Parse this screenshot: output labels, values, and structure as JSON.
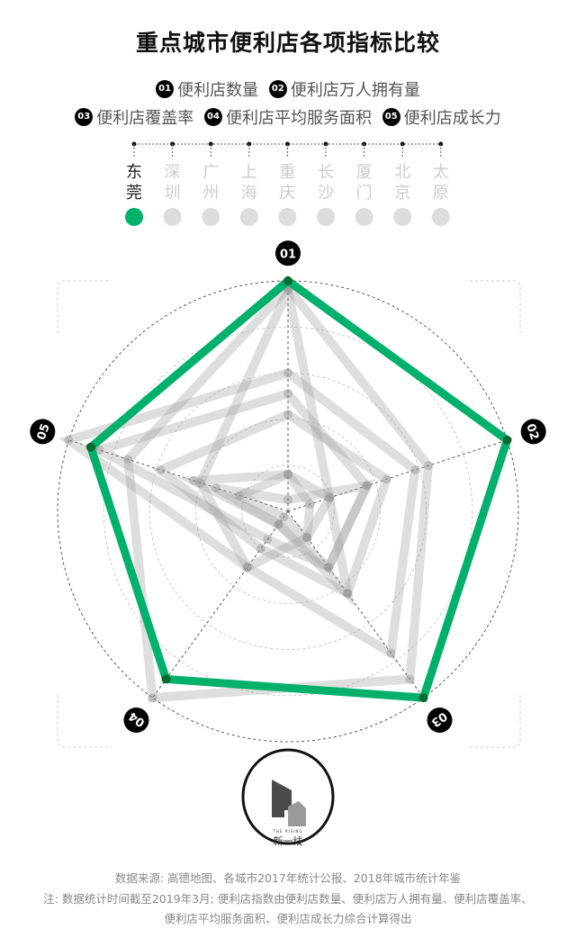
{
  "title": "重点城市便利店各项指标比较",
  "legend": [
    {
      "num": "01",
      "label": "便利店数量"
    },
    {
      "num": "02",
      "label": "便利店万人拥有量"
    },
    {
      "num": "03",
      "label": "便利店覆盖率"
    },
    {
      "num": "04",
      "label": "便利店平均服务面积"
    },
    {
      "num": "05",
      "label": "便利店成长力"
    }
  ],
  "cities": [
    {
      "name1": "东",
      "name2": "莞",
      "selected": true
    },
    {
      "name1": "深",
      "name2": "圳",
      "selected": false
    },
    {
      "name1": "广",
      "name2": "州",
      "selected": false
    },
    {
      "name1": "上",
      "name2": "海",
      "selected": false
    },
    {
      "name1": "重",
      "name2": "庆",
      "selected": false
    },
    {
      "name1": "长",
      "name2": "沙",
      "selected": false
    },
    {
      "name1": "厦",
      "name2": "门",
      "selected": false
    },
    {
      "name1": "北",
      "name2": "京",
      "selected": false
    },
    {
      "name1": "太",
      "name2": "原",
      "selected": false
    }
  ],
  "colors": {
    "selected": "#00b06b",
    "unselected": "#cccccc",
    "selected_text": "#222222",
    "unselected_text": "#cccccc"
  },
  "chart_data": {
    "type": "radar",
    "axes": [
      "01",
      "02",
      "03",
      "04",
      "05"
    ],
    "rlim": [
      0,
      1
    ],
    "rings": 5,
    "series": [
      {
        "name": "东莞",
        "values": [
          1.0,
          1.0,
          1.0,
          0.9,
          0.9
        ],
        "highlight": true
      },
      {
        "name": "深圳",
        "values": [
          0.97,
          0.64,
          0.9,
          1.0,
          0.73
        ]
      },
      {
        "name": "广州",
        "values": [
          0.6,
          0.58,
          0.76,
          0.3,
          1.0
        ]
      },
      {
        "name": "上海",
        "values": [
          0.42,
          0.45,
          0.44,
          0.2,
          0.58
        ]
      },
      {
        "name": "重庆",
        "values": [
          0.51,
          0.36,
          0.3,
          0.15,
          0.86
        ]
      },
      {
        "name": "长沙",
        "values": [
          0.16,
          0.19,
          0.44,
          0.07,
          0.43
        ]
      },
      {
        "name": "厦门",
        "values": [
          0.96,
          0.19,
          0.14,
          0.3,
          0.4
        ]
      },
      {
        "name": "北京",
        "values": [
          0.05,
          0.36,
          0.3,
          0.07,
          0.33
        ]
      },
      {
        "name": "太原",
        "values": [
          0.16,
          0.1,
          0.14,
          0.03,
          0.22
        ]
      }
    ]
  },
  "logo": {
    "brand_en": "THE RISING",
    "brand_cn": "新一线"
  },
  "footer": {
    "source": "数据来源: 高德地图、各城市2017年统计公报、2018年城市统计年鉴",
    "note1": "注: 数据统计时间截至2019年3月; 便利店指数由便利店数量、便利店万人拥有量、便利店覆盖率、",
    "note2": "便利店平均服务面积、便利店成长力综合计算得出"
  }
}
